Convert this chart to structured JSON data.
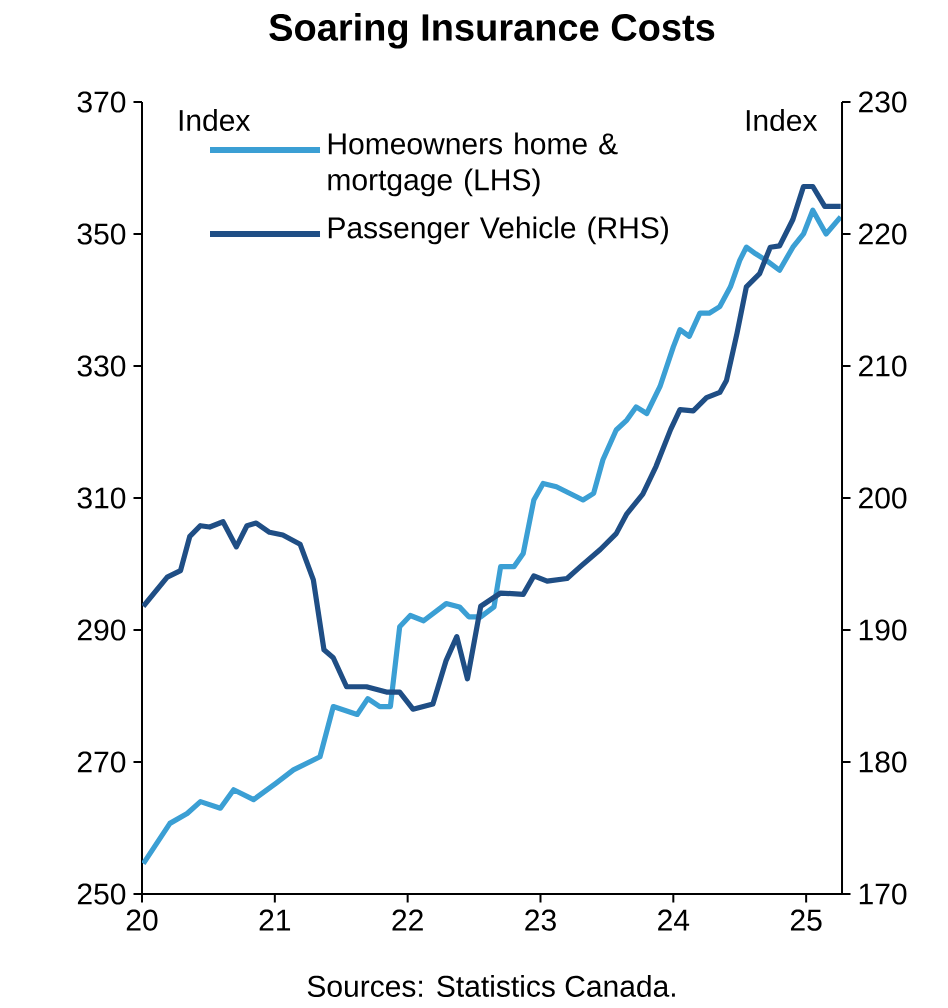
{
  "chart_data": {
    "type": "line",
    "title": "Soaring Insurance Costs",
    "ylabel": "Index",
    "y2label": "Index",
    "annotations": [
      "Sources: Statistics Canada."
    ],
    "xlim": [
      2020,
      2025.27
    ],
    "xticks": [
      {
        "value": 2020,
        "label": "20"
      },
      {
        "value": 2021,
        "label": "21"
      },
      {
        "value": 2022,
        "label": "22"
      },
      {
        "value": 2023,
        "label": "23"
      },
      {
        "value": 2024,
        "label": "24"
      },
      {
        "value": 2025,
        "label": "25"
      }
    ],
    "ylim": [
      250,
      370
    ],
    "yticks": [
      250,
      270,
      290,
      310,
      330,
      350,
      370
    ],
    "y2lim": [
      170,
      230
    ],
    "y2ticks": [
      170,
      180,
      190,
      200,
      210,
      220,
      230
    ],
    "legend": "top left",
    "marker": "none",
    "line_style": "solid",
    "grid": false,
    "series": [
      {
        "name": "Homeowners home & mortgage (LHS)",
        "color": "#3b9fd4",
        "x": [
          2020.01,
          2020.21,
          2020.34,
          2020.44,
          2020.59,
          2020.69,
          2020.84,
          2021.01,
          2021.14,
          2021.34,
          2021.44,
          2021.62,
          2021.7,
          2021.79,
          2021.87,
          2021.94,
          2022.02,
          2022.12,
          2022.29,
          2022.39,
          2022.46,
          2022.55,
          2022.65,
          2022.7,
          2022.8,
          2022.87,
          2022.95,
          2023.02,
          2023.12,
          2023.32,
          2023.4,
          2023.47,
          2023.57,
          2023.65,
          2023.72,
          2023.8,
          2023.9,
          2024.0,
          2024.05,
          2024.12,
          2024.2,
          2024.27,
          2024.35,
          2024.43,
          2024.5,
          2024.55,
          2024.62,
          2024.7,
          2024.8,
          2024.9,
          2024.98,
          2025.05,
          2025.15,
          2025.26
        ],
        "values": [
          254.6,
          260.7,
          262.2,
          264,
          263,
          265.8,
          264.3,
          266.8,
          268.8,
          270.8,
          278.4,
          277.2,
          279.6,
          278.4,
          278.4,
          290.5,
          292.2,
          291.4,
          294,
          293.5,
          292,
          292,
          293.5,
          299.6,
          299.6,
          301.6,
          309.7,
          312.2,
          311.7,
          309.7,
          310.7,
          315.8,
          320.3,
          321.8,
          323.8,
          322.8,
          326.9,
          332.9,
          335.5,
          334.5,
          338,
          338,
          339,
          342,
          346,
          348,
          347,
          346,
          344.5,
          348,
          350,
          353.6,
          350,
          352.6
        ]
      },
      {
        "name": "Passenger Vehicle (RHS)",
        "color": "#1f4e85",
        "axis": "y2",
        "x": [
          2020.01,
          2020.19,
          2020.29,
          2020.36,
          2020.44,
          2020.51,
          2020.61,
          2020.71,
          2020.79,
          2020.86,
          2020.96,
          2021.06,
          2021.19,
          2021.29,
          2021.37,
          2021.44,
          2021.54,
          2021.69,
          2021.84,
          2021.94,
          2022.04,
          2022.19,
          2022.29,
          2022.37,
          2022.45,
          2022.55,
          2022.7,
          2022.87,
          2022.95,
          2023.05,
          2023.2,
          2023.3,
          2023.45,
          2023.57,
          2023.65,
          2023.77,
          2023.87,
          2023.98,
          2024.05,
          2024.15,
          2024.25,
          2024.35,
          2024.4,
          2024.48,
          2024.55,
          2024.65,
          2024.73,
          2024.8,
          2024.9,
          2024.98,
          2025.05,
          2025.14,
          2025.26
        ],
        "values": [
          191.8,
          194,
          194.5,
          197.1,
          197.9,
          197.8,
          198.2,
          196.3,
          197.9,
          198.1,
          197.4,
          197.2,
          196.5,
          193.8,
          188.5,
          187.9,
          185.7,
          185.7,
          185.3,
          185.3,
          184,
          184.4,
          187.7,
          189.5,
          186.3,
          191.8,
          192.8,
          192.7,
          194.1,
          193.7,
          193.9,
          194.8,
          196.1,
          197.3,
          198.8,
          200.3,
          202.4,
          205.2,
          206.7,
          206.6,
          207.6,
          208,
          208.9,
          212.5,
          216,
          217,
          219,
          219.1,
          221.1,
          223.6,
          223.6,
          222.1,
          222.1
        ]
      }
    ]
  }
}
